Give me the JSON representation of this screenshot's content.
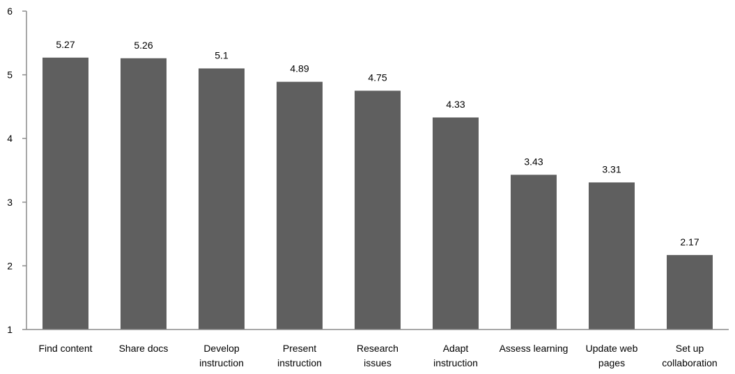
{
  "chart_data": {
    "type": "bar",
    "categories": [
      [
        "Find content"
      ],
      [
        "Share docs"
      ],
      [
        "Develop",
        "instruction"
      ],
      [
        "Present",
        "instruction"
      ],
      [
        "Research",
        "issues"
      ],
      [
        "Adapt",
        "instruction"
      ],
      [
        "Assess learning"
      ],
      [
        "Update web",
        "pages"
      ],
      [
        "Set up",
        "collaboration"
      ]
    ],
    "values": [
      5.27,
      5.26,
      5.1,
      4.89,
      4.75,
      4.33,
      3.43,
      3.31,
      2.17
    ],
    "data_labels": [
      "5.27",
      "5.26",
      "5.1",
      "4.89",
      "4.75",
      "4.33",
      "3.43",
      "3.31",
      "2.17"
    ],
    "yticks": [
      "1",
      "2",
      "3",
      "4",
      "5",
      "6"
    ],
    "ylim": [
      1,
      6
    ],
    "grid": false,
    "bar_color": "#5f5f5f",
    "axis_color": "#8c8c8c"
  }
}
